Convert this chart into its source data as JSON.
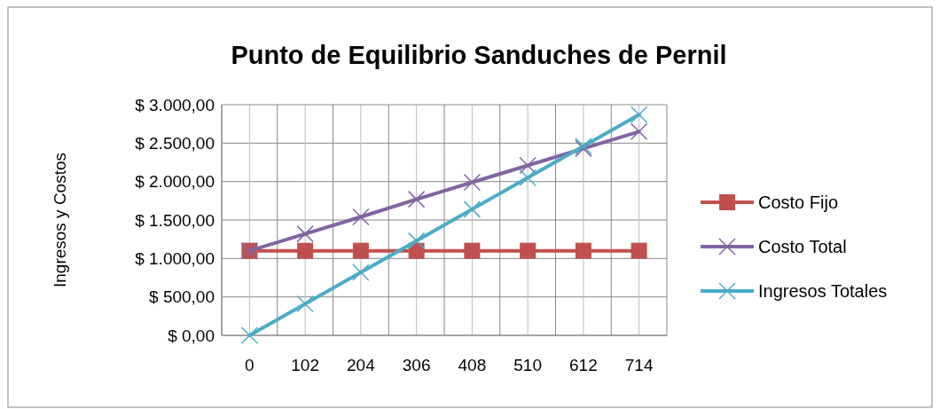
{
  "chart_data": {
    "type": "line",
    "title": "Punto de Equilibrio Sanduches de Pernil",
    "ylabel": "Ingresos y Costos",
    "categories": [
      "0",
      "102",
      "204",
      "306",
      "408",
      "510",
      "612",
      "714"
    ],
    "series": [
      {
        "name": "Costo Fijo",
        "color": "#c0504d",
        "marker": "square",
        "values": [
          1100,
          1100,
          1100,
          1100,
          1100,
          1100,
          1100,
          1100
        ]
      },
      {
        "name": "Costo Total",
        "color": "#8064a2",
        "marker": "cross",
        "values": [
          1100,
          1320,
          1540,
          1770,
          1990,
          2210,
          2430,
          2650
        ]
      },
      {
        "name": "Ingresos Totales",
        "color": "#4bacc6",
        "marker": "cross",
        "values": [
          0,
          410,
          820,
          1230,
          1640,
          2050,
          2460,
          2870
        ]
      }
    ],
    "ylim": [
      0,
      3000
    ],
    "yticks": [
      {
        "value": 0,
        "label": "$ 0,00"
      },
      {
        "value": 500,
        "label": "$ 500,00"
      },
      {
        "value": 1000,
        "label": "$ 1.000,00"
      },
      {
        "value": 1500,
        "label": "$ 1.500,00"
      },
      {
        "value": 2000,
        "label": "$ 2.000,00"
      },
      {
        "value": 2500,
        "label": "$ 2.500,00"
      },
      {
        "value": 3000,
        "label": "$ 3.000,00"
      }
    ],
    "grid": true,
    "legend": "right"
  }
}
